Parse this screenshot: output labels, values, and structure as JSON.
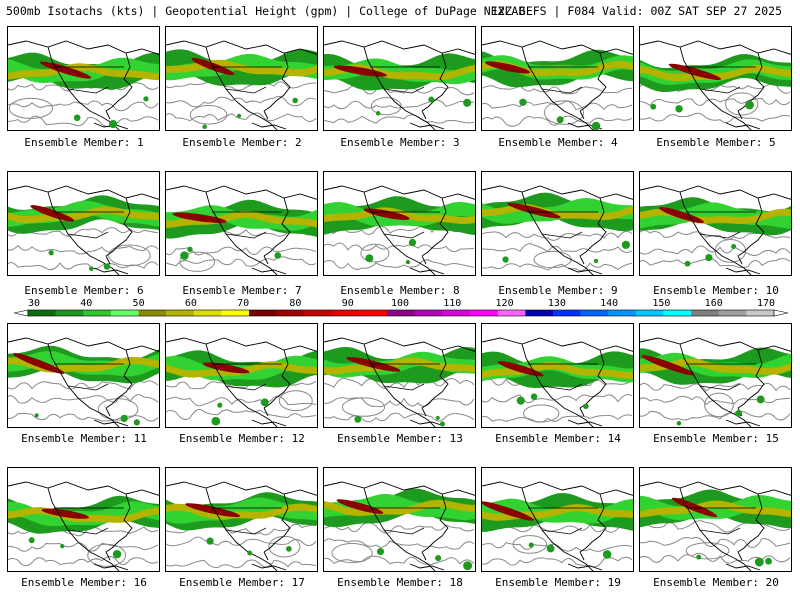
{
  "header": {
    "left": "500mb Isotachs (kts) | Geopotential Height (gpm) | College of DuPage NEXLAB",
    "right": "12Z GEFS | F084 Valid: 00Z SAT SEP 27 2025"
  },
  "panels": [
    {
      "label": "Ensemble Member: 1"
    },
    {
      "label": "Ensemble Member: 2"
    },
    {
      "label": "Ensemble Member: 3"
    },
    {
      "label": "Ensemble Member: 4"
    },
    {
      "label": "Ensemble Member: 5"
    },
    {
      "label": "Ensemble Member: 6"
    },
    {
      "label": "Ensemble Member: 7"
    },
    {
      "label": "Ensemble Member: 8"
    },
    {
      "label": "Ensemble Member: 9"
    },
    {
      "label": "Ensemble Member: 10"
    },
    {
      "label": "Ensemble Member: 11"
    },
    {
      "label": "Ensemble Member: 12"
    },
    {
      "label": "Ensemble Member: 13"
    },
    {
      "label": "Ensemble Member: 14"
    },
    {
      "label": "Ensemble Member: 15"
    },
    {
      "label": "Ensemble Member: 16"
    },
    {
      "label": "Ensemble Member: 17"
    },
    {
      "label": "Ensemble Member: 18"
    },
    {
      "label": "Ensemble Member: 19"
    },
    {
      "label": "Ensemble Member: 20"
    }
  ],
  "colorbar": {
    "tick_labels": [
      "30",
      "40",
      "50",
      "60",
      "70",
      "80",
      "90",
      "100",
      "110",
      "120",
      "130",
      "140",
      "150",
      "160",
      "170"
    ],
    "colors": [
      "#0a6e0a",
      "#1e961e",
      "#2ec82e",
      "#64ff64",
      "#8c8c00",
      "#b4b400",
      "#dcdc00",
      "#ffff00",
      "#780000",
      "#a00000",
      "#c80000",
      "#e60000",
      "#ff0000",
      "#8c008c",
      "#b400b4",
      "#dc00dc",
      "#ff00ff",
      "#ff64ff",
      "#0000b4",
      "#0032ff",
      "#0064ff",
      "#0096ff",
      "#00c8ff",
      "#00ffff",
      "#808080",
      "#a0a0a0",
      "#c8c8c8"
    ]
  },
  "map_colors": {
    "jet_low": "#1e9b1e",
    "jet_mid": "#32d232",
    "jet_yellow": "#b4b400",
    "jet_core": "#8b0000",
    "height_contour": "#888888",
    "border": "#000000"
  }
}
